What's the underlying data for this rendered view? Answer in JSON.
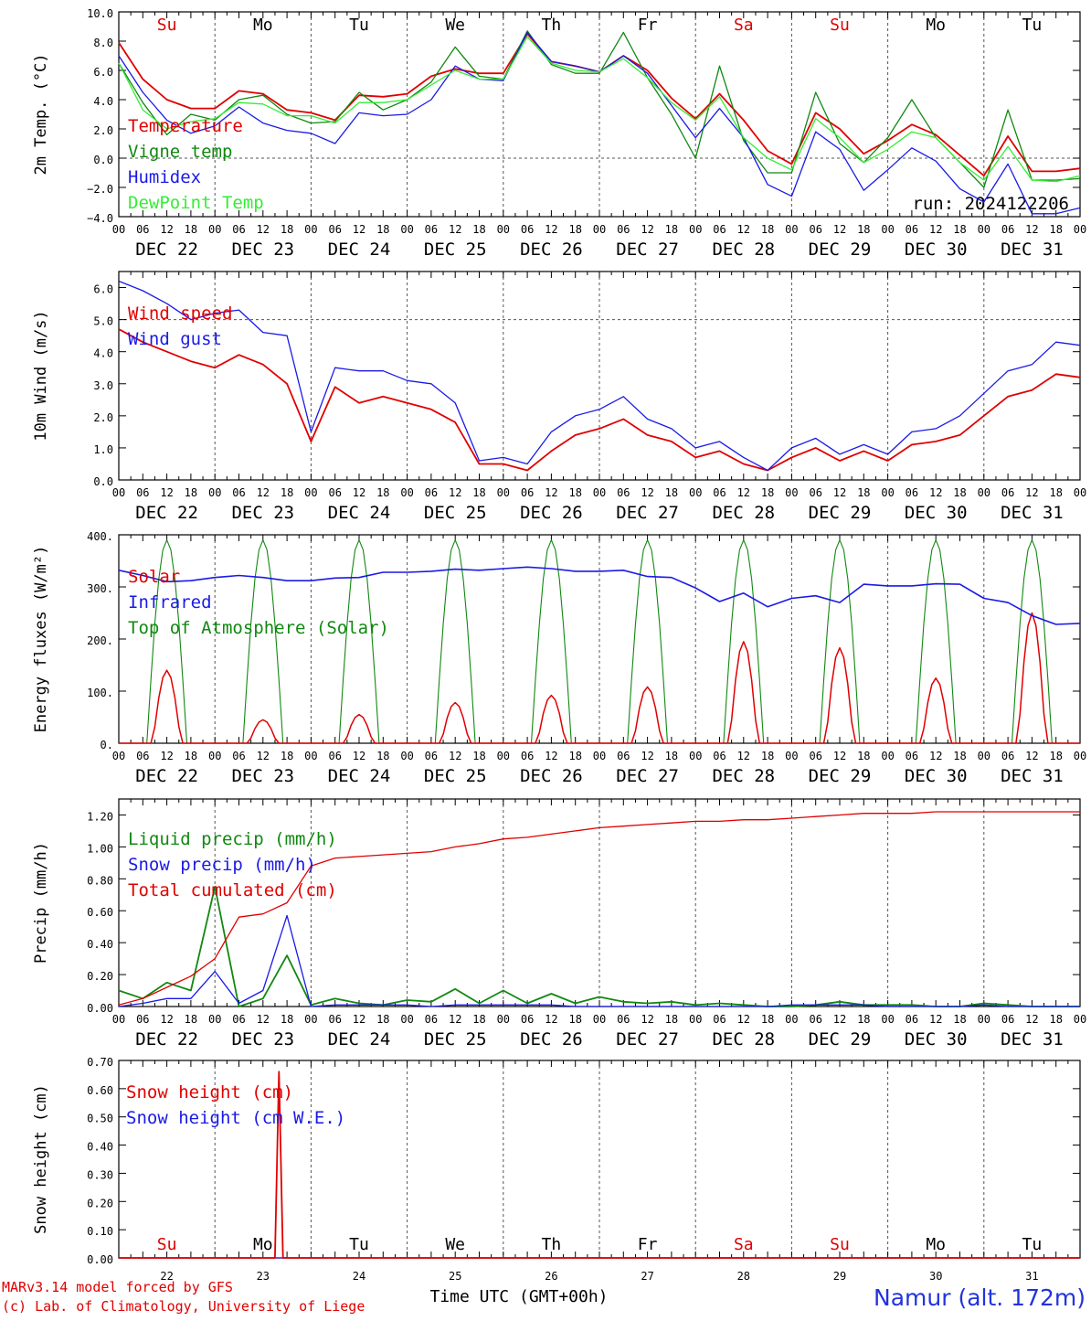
{
  "chart_data": [
    {
      "type": "line",
      "ylabel": "2m Temp. (°C)",
      "ylim": [
        -4,
        10
      ],
      "yticks": [
        "10.0",
        "8.0",
        "6.0",
        "4.0",
        "2.0",
        "0.0",
        "−2.0",
        "−4.0"
      ],
      "ytick_values": [
        10,
        8,
        6,
        4,
        2,
        0,
        -2,
        -4
      ],
      "run_label": "run: 2024122206",
      "weekdays": [
        "Su",
        "Mo",
        "Tu",
        "We",
        "Th",
        "Fr",
        "Sa",
        "Su",
        "Mo",
        "Tu"
      ],
      "dashed_reference": [
        0
      ],
      "x_hours": [
        0,
        6,
        12,
        18,
        24,
        30,
        36,
        42,
        48,
        54,
        60,
        66,
        72,
        78,
        84,
        90,
        96,
        102,
        108,
        114,
        120,
        126,
        132,
        138,
        144,
        150,
        156,
        162,
        168,
        174,
        180,
        186,
        192,
        198,
        204,
        210,
        216,
        222,
        228,
        234,
        240
      ],
      "series": [
        {
          "name": "Temperature",
          "color": "#e00000",
          "values": [
            7.9,
            5.4,
            4.0,
            3.4,
            3.4,
            4.6,
            4.4,
            3.3,
            3.1,
            2.6,
            4.3,
            4.2,
            4.4,
            5.6,
            6.1,
            5.8,
            5.8,
            8.5,
            6.6,
            6.3,
            5.9,
            7.0,
            6.0,
            4.1,
            2.7,
            4.4,
            2.6,
            0.5,
            -0.4,
            3.1,
            2.0,
            0.3,
            1.2,
            2.3,
            1.6,
            0.2,
            -1.2,
            1.5,
            -0.9,
            -0.9,
            -0.7
          ]
        },
        {
          "name": "Vigne temp",
          "color": "#118811",
          "values": [
            6.5,
            3.8,
            1.6,
            3.0,
            2.6,
            4.0,
            4.3,
            3.0,
            2.4,
            2.5,
            4.5,
            3.3,
            4.0,
            5.2,
            7.6,
            5.6,
            5.4,
            8.7,
            6.4,
            5.8,
            5.8,
            8.6,
            5.5,
            3.0,
            0.0,
            6.3,
            1.2,
            -1.0,
            -1.0,
            4.5,
            1.0,
            -0.3,
            1.4,
            4.0,
            1.4,
            -0.3,
            -2.0,
            3.3,
            -1.5,
            -1.5,
            -1.4
          ]
        },
        {
          "name": "Humidex",
          "color": "#1a1ae6",
          "values": [
            7.0,
            4.5,
            2.6,
            1.7,
            2.2,
            3.5,
            2.4,
            1.9,
            1.7,
            1.0,
            3.1,
            2.9,
            3.0,
            4.0,
            6.3,
            5.4,
            5.3,
            8.6,
            6.6,
            6.3,
            5.9,
            7.0,
            5.8,
            3.6,
            1.4,
            3.4,
            1.4,
            -1.8,
            -2.6,
            1.8,
            0.6,
            -2.2,
            -0.8,
            0.7,
            -0.2,
            -2.1,
            -3.0,
            -0.4,
            -3.8,
            -3.8,
            -3.4
          ]
        },
        {
          "name": "DewPoint Temp",
          "color": "#33ee33",
          "values": [
            6.5,
            3.3,
            2.0,
            2.5,
            2.7,
            3.8,
            3.7,
            2.9,
            2.9,
            2.4,
            3.8,
            3.8,
            4.0,
            5.0,
            6.0,
            5.4,
            5.4,
            8.3,
            6.5,
            6.0,
            5.9,
            6.8,
            5.5,
            3.8,
            2.6,
            4.2,
            1.4,
            0.0,
            -0.8,
            2.7,
            1.4,
            -0.3,
            0.6,
            1.8,
            1.4,
            -0.3,
            -1.5,
            0.8,
            -1.5,
            -1.6,
            -1.2
          ]
        }
      ]
    },
    {
      "type": "line",
      "ylabel": "10m Wind (m/s)",
      "ylim": [
        0,
        6.5
      ],
      "yticks": [
        "6.0",
        "5.0",
        "4.0",
        "3.0",
        "2.0",
        "1.0",
        "0.0"
      ],
      "ytick_values": [
        6,
        5,
        4,
        3,
        2,
        1,
        0
      ],
      "dashed_reference": [
        5
      ],
      "x_hours": [
        0,
        6,
        12,
        18,
        24,
        30,
        36,
        42,
        48,
        54,
        60,
        66,
        72,
        78,
        84,
        90,
        96,
        102,
        108,
        114,
        120,
        126,
        132,
        138,
        144,
        150,
        156,
        162,
        168,
        174,
        180,
        186,
        192,
        198,
        204,
        210,
        216,
        222,
        228,
        234,
        240
      ],
      "series": [
        {
          "name": "Wind speed",
          "color": "#e00000",
          "values": [
            4.7,
            4.3,
            4.0,
            3.7,
            3.5,
            3.9,
            3.6,
            3.0,
            1.2,
            2.9,
            2.4,
            2.6,
            2.4,
            2.2,
            1.8,
            0.5,
            0.5,
            0.3,
            0.9,
            1.4,
            1.6,
            1.9,
            1.4,
            1.2,
            0.7,
            0.9,
            0.5,
            0.3,
            0.7,
            1.0,
            0.6,
            0.9,
            0.6,
            1.1,
            1.2,
            1.4,
            2.0,
            2.6,
            2.8,
            3.3,
            3.2
          ]
        },
        {
          "name": "Wind gust",
          "color": "#1a1ae6",
          "values": [
            6.2,
            5.9,
            5.5,
            5.0,
            5.2,
            5.3,
            4.6,
            4.5,
            1.5,
            3.5,
            3.4,
            3.4,
            3.1,
            3.0,
            2.4,
            0.6,
            0.7,
            0.5,
            1.5,
            2.0,
            2.2,
            2.6,
            1.9,
            1.6,
            1.0,
            1.2,
            0.7,
            0.3,
            1.0,
            1.3,
            0.8,
            1.1,
            0.8,
            1.5,
            1.6,
            2.0,
            2.7,
            3.4,
            3.6,
            4.3,
            4.2
          ]
        }
      ]
    },
    {
      "type": "line",
      "ylabel": "Energy fluxes (W/m²)",
      "ylim": [
        0,
        400
      ],
      "yticks": [
        "400.",
        "300.",
        "200.",
        "100.",
        "0."
      ],
      "ytick_values": [
        400,
        300,
        200,
        100,
        0
      ],
      "solar_day_peaks": [
        140,
        45,
        55,
        78,
        92,
        108,
        195,
        183,
        125,
        250
      ],
      "toa_day_peak": 390,
      "x_hours": [
        0,
        6,
        12,
        18,
        24,
        30,
        36,
        42,
        48,
        54,
        60,
        66,
        72,
        78,
        84,
        90,
        96,
        102,
        108,
        114,
        120,
        126,
        132,
        138,
        144,
        150,
        156,
        162,
        168,
        174,
        180,
        186,
        192,
        198,
        204,
        210,
        216,
        222,
        228,
        234,
        240
      ],
      "series": [
        {
          "name": "Solar",
          "color": "#e00000",
          "values": []
        },
        {
          "name": "Infrared",
          "color": "#1a1ae6",
          "values": [
            332,
            322,
            310,
            312,
            318,
            322,
            318,
            312,
            312,
            317,
            318,
            328,
            328,
            330,
            334,
            332,
            335,
            338,
            335,
            330,
            330,
            332,
            320,
            318,
            298,
            272,
            288,
            262,
            278,
            283,
            270,
            305,
            302,
            302,
            306,
            305,
            278,
            270,
            245,
            228,
            230
          ]
        },
        {
          "name": "Top of Atmosphere (Solar)",
          "color": "#118811",
          "values": []
        }
      ]
    },
    {
      "type": "line",
      "ylabel": "Precip (mm/h)",
      "ylim": [
        0,
        1.3
      ],
      "yticks": [
        "1.20",
        "1.00",
        "0.80",
        "0.60",
        "0.40",
        "0.20",
        "0.00"
      ],
      "ytick_values": [
        1.2,
        1.0,
        0.8,
        0.6,
        0.4,
        0.2,
        0.0
      ],
      "x_hours": [
        0,
        6,
        12,
        18,
        24,
        30,
        36,
        42,
        48,
        54,
        60,
        66,
        72,
        78,
        84,
        90,
        96,
        102,
        108,
        114,
        120,
        126,
        132,
        138,
        144,
        150,
        156,
        162,
        168,
        174,
        180,
        186,
        192,
        198,
        204,
        210,
        216,
        222,
        228,
        234,
        240
      ],
      "series": [
        {
          "name": "Liquid precip (mm/h)",
          "color": "#118811",
          "values": [
            0.1,
            0.05,
            0.15,
            0.1,
            0.75,
            0.0,
            0.05,
            0.32,
            0.01,
            0.05,
            0.02,
            0.01,
            0.04,
            0.03,
            0.11,
            0.02,
            0.1,
            0.02,
            0.08,
            0.02,
            0.06,
            0.03,
            0.02,
            0.03,
            0.01,
            0.02,
            0.01,
            0.0,
            0.0,
            0.01,
            0.03,
            0.01,
            0.01,
            0.01,
            0.0,
            0.0,
            0.02,
            0.01,
            0.0,
            0.0,
            0.0
          ]
        },
        {
          "name": "Snow precip (mm/h)",
          "color": "#1a1ae6",
          "values": [
            0.0,
            0.02,
            0.05,
            0.05,
            0.22,
            0.02,
            0.1,
            0.57,
            0.0,
            0.01,
            0.01,
            0.01,
            0.01,
            0.0,
            0.01,
            0.01,
            0.01,
            0.01,
            0.01,
            0.0,
            0.0,
            0.0,
            0.0,
            0.0,
            0.0,
            0.0,
            0.0,
            0.0,
            0.01,
            0.01,
            0.01,
            0.01,
            0.0,
            0.0,
            0.0,
            0.0,
            0.01,
            0.0,
            0.0,
            0.0,
            0.0
          ]
        },
        {
          "name": "Total cumulated (cm)",
          "color": "#e00000",
          "values": [
            0.01,
            0.05,
            0.12,
            0.19,
            0.3,
            0.56,
            0.58,
            0.65,
            0.88,
            0.93,
            0.94,
            0.95,
            0.96,
            0.97,
            1.0,
            1.02,
            1.05,
            1.06,
            1.08,
            1.1,
            1.12,
            1.13,
            1.14,
            1.15,
            1.16,
            1.16,
            1.17,
            1.17,
            1.18,
            1.19,
            1.2,
            1.21,
            1.21,
            1.21,
            1.22,
            1.22,
            1.22,
            1.22,
            1.22,
            1.22,
            1.22
          ]
        }
      ]
    },
    {
      "type": "line",
      "ylabel": "Snow height (cm)",
      "ylim": [
        0,
        0.7
      ],
      "yticks": [
        "0.70",
        "0.60",
        "0.50",
        "0.40",
        "0.30",
        "0.20",
        "0.10",
        "0.00"
      ],
      "ytick_values": [
        0.7,
        0.6,
        0.5,
        0.4,
        0.3,
        0.2,
        0.1,
        0.0
      ],
      "xlabel": "Time UTC (GMT+00h)",
      "weekdays": [
        "Su",
        "Mo",
        "Tu",
        "We",
        "Th",
        "Fr",
        "Sa",
        "Su",
        "Mo",
        "Tu"
      ],
      "day_numbers": [
        "22",
        "23",
        "24",
        "25",
        "26",
        "27",
        "28",
        "29",
        "30",
        "31"
      ],
      "snow_spike": {
        "hour": 40,
        "value": 0.66
      },
      "series": [
        {
          "name": "Snow height (cm)",
          "color": "#e00000",
          "values": [
            0,
            0,
            0,
            0,
            0,
            0,
            0.66,
            0,
            0,
            0
          ]
        },
        {
          "name": "Snow height (cm W.E.)",
          "color": "#1a1ae6",
          "values": [
            0,
            0,
            0,
            0,
            0,
            0,
            0,
            0,
            0,
            0
          ]
        }
      ]
    }
  ],
  "axis": {
    "hour_labels": [
      "00",
      "06",
      "12",
      "18"
    ],
    "last_hour_label": "00",
    "date_labels": [
      "DEC 22",
      "DEC 23",
      "DEC 24",
      "DEC 25",
      "DEC 26",
      "DEC 27",
      "DEC 28",
      "DEC 29",
      "DEC 30",
      "DEC 31"
    ]
  },
  "colors": {
    "weekend_day": "#e00000",
    "weekday": "#000000",
    "weekend_indices": [
      0,
      6,
      7
    ]
  },
  "footer": {
    "credit_line1": "MARv3.14 model forced by GFS",
    "credit_line2": "(c) Lab. of Climatology, University of Liege",
    "xlabel": "Time UTC (GMT+00h)",
    "station": "Namur (alt. 172m)"
  }
}
